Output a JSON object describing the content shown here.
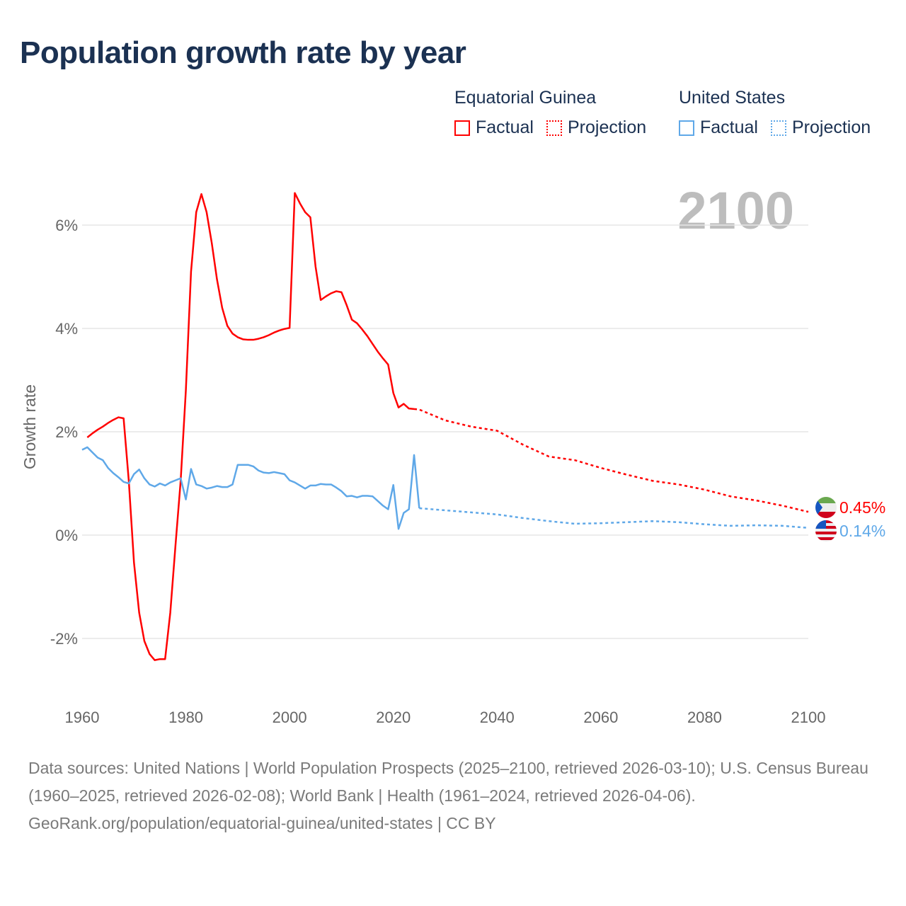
{
  "title": "Population growth rate by year",
  "legend": {
    "groups": [
      {
        "name": "Equatorial Guinea",
        "color": "#ff0000",
        "factual": "Factual",
        "projection": "Projection"
      },
      {
        "name": "United States",
        "color": "#5fa8e8",
        "factual": "Factual",
        "projection": "Projection"
      }
    ]
  },
  "year_label": "2100",
  "end_labels": [
    "0.45%",
    "0.14%"
  ],
  "footer": {
    "sources": "Data sources: United Nations | World Population Prospects (2025–2100, retrieved 2026-03-10); U.S. Census Bureau (1960–2025, retrieved 2026-02-08); World Bank | Health (1961–2024, retrieved 2026-04-06).",
    "credit": "GeoRank.org/population/equatorial-guinea/united-states | CC BY"
  },
  "chart_data": {
    "type": "line",
    "title": "Population growth rate by year",
    "xlabel": "",
    "ylabel": "Growth rate",
    "xlim": [
      1960,
      2100
    ],
    "ylim": [
      -3,
      7
    ],
    "x_ticks": [
      1960,
      1980,
      2000,
      2020,
      2040,
      2060,
      2080,
      2100
    ],
    "x_tick_labels": [
      "1960",
      "1980",
      "2000",
      "2020",
      "2040",
      "2060",
      "2080",
      "2100"
    ],
    "y_ticks": [
      -2,
      0,
      2,
      4,
      6
    ],
    "y_tick_labels": [
      "-2%",
      "0%",
      "2%",
      "4%",
      "6%"
    ],
    "grid": true,
    "legend_position": "top-right",
    "series": [
      {
        "name": "Equatorial Guinea Factual",
        "color": "#ff0000",
        "style": "solid",
        "x": [
          1961,
          1962,
          1963,
          1964,
          1965,
          1966,
          1967,
          1968,
          1969,
          1970,
          1971,
          1972,
          1973,
          1974,
          1975,
          1976,
          1977,
          1978,
          1979,
          1980,
          1981,
          1982,
          1983,
          1984,
          1985,
          1986,
          1987,
          1988,
          1989,
          1990,
          1991,
          1992,
          1993,
          1994,
          1995,
          1996,
          1997,
          1998,
          1999,
          2000,
          2001,
          2002,
          2003,
          2004,
          2005,
          2006,
          2007,
          2008,
          2009,
          2010,
          2011,
          2012,
          2013,
          2014,
          2015,
          2016,
          2017,
          2018,
          2019,
          2020,
          2021,
          2022,
          2023,
          2024
        ],
        "y": [
          1.89,
          1.97,
          2.04,
          2.1,
          2.17,
          2.23,
          2.28,
          2.26,
          1.05,
          -0.53,
          -1.5,
          -2.05,
          -2.3,
          -2.42,
          -2.4,
          -2.4,
          -1.5,
          -0.2,
          1.05,
          2.8,
          5.1,
          6.25,
          6.6,
          6.25,
          5.65,
          4.95,
          4.4,
          4.05,
          3.9,
          3.83,
          3.79,
          3.78,
          3.78,
          3.8,
          3.83,
          3.87,
          3.92,
          3.96,
          3.99,
          4.01,
          6.62,
          6.42,
          6.25,
          6.15,
          5.2,
          4.55,
          4.62,
          4.68,
          4.72,
          4.7,
          4.45,
          4.17,
          4.1,
          3.98,
          3.85,
          3.7,
          3.55,
          3.42,
          3.3,
          2.75,
          2.47,
          2.54,
          2.45,
          2.44
        ]
      },
      {
        "name": "Equatorial Guinea Projection",
        "color": "#ff0000",
        "style": "dotted",
        "x": [
          2024,
          2025,
          2030,
          2035,
          2040,
          2045,
          2050,
          2055,
          2060,
          2065,
          2070,
          2075,
          2080,
          2085,
          2090,
          2095,
          2100
        ],
        "y": [
          2.44,
          2.43,
          2.22,
          2.1,
          2.02,
          1.75,
          1.52,
          1.45,
          1.3,
          1.17,
          1.05,
          0.98,
          0.88,
          0.75,
          0.67,
          0.57,
          0.45
        ]
      },
      {
        "name": "United States Factual",
        "color": "#5fa8e8",
        "style": "solid",
        "x": [
          1960,
          1961,
          1962,
          1963,
          1964,
          1965,
          1966,
          1967,
          1968,
          1969,
          1970,
          1971,
          1972,
          1973,
          1974,
          1975,
          1976,
          1977,
          1978,
          1979,
          1980,
          1981,
          1982,
          1983,
          1984,
          1985,
          1986,
          1987,
          1988,
          1989,
          1990,
          1991,
          1992,
          1993,
          1994,
          1995,
          1996,
          1997,
          1998,
          1999,
          2000,
          2001,
          2002,
          2003,
          2004,
          2005,
          2006,
          2007,
          2008,
          2009,
          2010,
          2011,
          2012,
          2013,
          2014,
          2015,
          2016,
          2017,
          2018,
          2019,
          2020,
          2021,
          2022,
          2023,
          2024,
          2025
        ],
        "y": [
          1.65,
          1.7,
          1.6,
          1.5,
          1.45,
          1.3,
          1.2,
          1.12,
          1.03,
          1.0,
          1.18,
          1.27,
          1.1,
          0.98,
          0.94,
          1.0,
          0.96,
          1.02,
          1.06,
          1.1,
          0.69,
          1.28,
          0.98,
          0.95,
          0.9,
          0.92,
          0.95,
          0.93,
          0.93,
          0.98,
          1.36,
          1.36,
          1.36,
          1.33,
          1.25,
          1.21,
          1.2,
          1.22,
          1.2,
          1.18,
          1.06,
          1.02,
          0.96,
          0.9,
          0.96,
          0.96,
          0.99,
          0.98,
          0.98,
          0.92,
          0.85,
          0.75,
          0.76,
          0.73,
          0.76,
          0.76,
          0.75,
          0.66,
          0.57,
          0.5,
          0.97,
          0.12,
          0.43,
          0.5,
          1.55,
          0.52
        ]
      },
      {
        "name": "United States Projection",
        "color": "#5fa8e8",
        "style": "dotted",
        "x": [
          2025,
          2030,
          2035,
          2040,
          2045,
          2050,
          2055,
          2060,
          2065,
          2070,
          2075,
          2080,
          2085,
          2090,
          2095,
          2100
        ],
        "y": [
          0.52,
          0.48,
          0.44,
          0.4,
          0.33,
          0.27,
          0.22,
          0.23,
          0.25,
          0.27,
          0.25,
          0.21,
          0.18,
          0.19,
          0.18,
          0.14
        ]
      }
    ]
  }
}
